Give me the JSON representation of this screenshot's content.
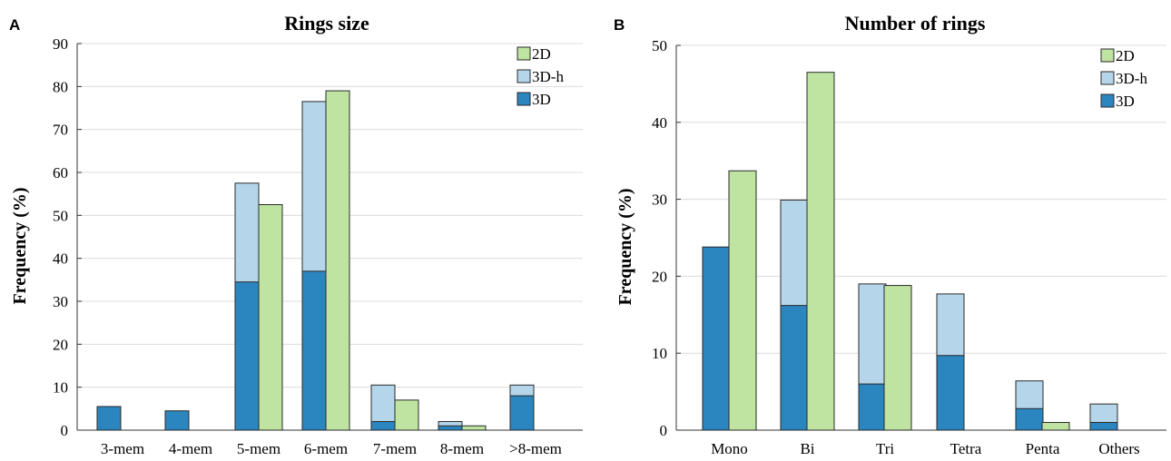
{
  "colors": {
    "3D": "#2b86c0",
    "3D-h": "#b5d6ea",
    "2D": "#bfe3a1"
  },
  "chart_data": [
    {
      "panel": "A",
      "type": "bar",
      "title": "Rings size",
      "xlabel": "",
      "ylabel": "Frequency (%)",
      "ylim": [
        0,
        90
      ],
      "yticks": [
        0,
        10,
        20,
        30,
        40,
        50,
        60,
        70,
        80,
        90
      ],
      "grid": true,
      "legend_position": "top-right",
      "legend": [
        "2D",
        "3D-h",
        "3D"
      ],
      "categories": [
        "3-mem",
        "4-mem",
        "5-mem",
        "6-mem",
        "7-mem",
        "8-mem",
        ">8-mem"
      ],
      "series": [
        {
          "name": "3D",
          "values": [
            5.5,
            4.5,
            34.5,
            37,
            2,
            1,
            8
          ]
        },
        {
          "name": "3D-h",
          "values": [
            5.5,
            4.5,
            57.5,
            76.5,
            10.5,
            2,
            10.5
          ]
        },
        {
          "name": "2D",
          "values": [
            0,
            0,
            52.5,
            79,
            7,
            1,
            0
          ]
        }
      ]
    },
    {
      "panel": "B",
      "type": "bar",
      "title": "Number of rings",
      "xlabel": "",
      "ylabel": "Frequency (%)",
      "ylim": [
        0,
        50
      ],
      "yticks": [
        0,
        10,
        20,
        30,
        40,
        50
      ],
      "grid": true,
      "legend_position": "top-right",
      "legend": [
        "2D",
        "3D-h",
        "3D"
      ],
      "categories": [
        "Mono",
        "Bi",
        "Tri",
        "Tetra",
        "Penta",
        "Others"
      ],
      "series": [
        {
          "name": "3D",
          "values": [
            23.8,
            16.2,
            6,
            9.7,
            2.8,
            1
          ]
        },
        {
          "name": "3D-h",
          "values": [
            23.8,
            29.9,
            19,
            17.7,
            6.4,
            3.4
          ]
        },
        {
          "name": "2D",
          "values": [
            33.7,
            46.5,
            18.8,
            0,
            1,
            0
          ]
        }
      ]
    }
  ]
}
